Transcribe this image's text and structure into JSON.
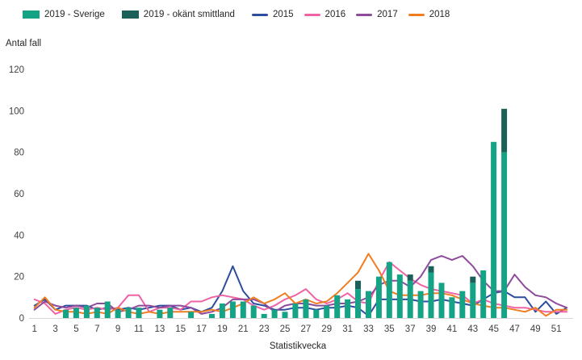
{
  "legend": {
    "items": [
      {
        "label": "2019 - Sverige",
        "color": "#14a384",
        "type": "bar"
      },
      {
        "label": "2019 - okänt smittland",
        "color": "#1a6059",
        "type": "bar"
      },
      {
        "label": "2015",
        "color": "#2d4d9e",
        "type": "line"
      },
      {
        "label": "2016",
        "color": "#ef63a5",
        "type": "line"
      },
      {
        "label": "2017",
        "color": "#8f4a9c",
        "type": "line"
      },
      {
        "label": "2018",
        "color": "#ef7d22",
        "type": "line"
      }
    ]
  },
  "chart_data": {
    "type": "bar",
    "title": "",
    "ylabel": "Antal fall",
    "xlabel": "Statistikvecka",
    "ylim": [
      0,
      120
    ],
    "grid": false,
    "legend_position": "top",
    "y_ticks": [
      0,
      20,
      40,
      60,
      80,
      100,
      120
    ],
    "x_tick_weeks": [
      1,
      3,
      5,
      7,
      9,
      11,
      13,
      15,
      17,
      19,
      21,
      23,
      25,
      27,
      29,
      31,
      33,
      35,
      37,
      39,
      41,
      43,
      45,
      47,
      49,
      51
    ],
    "weeks": [
      1,
      2,
      3,
      4,
      5,
      6,
      7,
      8,
      9,
      10,
      11,
      12,
      13,
      14,
      15,
      16,
      17,
      18,
      19,
      20,
      21,
      22,
      23,
      24,
      25,
      26,
      27,
      28,
      29,
      30,
      31,
      32,
      33,
      34,
      35,
      36,
      37,
      38,
      39,
      40,
      41,
      42,
      43,
      44,
      45,
      46,
      47,
      48,
      49,
      50,
      51,
      52
    ],
    "bar_series": [
      {
        "name": "2019 - Sverige",
        "color": "#14a384",
        "values": [
          0,
          0,
          0,
          4,
          5,
          6,
          5,
          8,
          4,
          5,
          5,
          0,
          4,
          5,
          0,
          3,
          0,
          2,
          7,
          8,
          8,
          6,
          2,
          4,
          3,
          7,
          9,
          4,
          6,
          11,
          9,
          14,
          13,
          20,
          27,
          21,
          18,
          13,
          22,
          17,
          10,
          13,
          17,
          23,
          85,
          80,
          0,
          0,
          0,
          0,
          0,
          0
        ]
      },
      {
        "name": "2019 - okänt smittland",
        "color": "#1a6059",
        "stacked_on": "2019 - Sverige",
        "values": [
          0,
          0,
          0,
          0,
          0,
          0,
          0,
          0,
          0,
          0,
          0,
          0,
          0,
          0,
          0,
          0,
          0,
          0,
          0,
          0,
          0,
          0,
          0,
          0,
          0,
          0,
          0,
          0,
          0,
          0,
          0,
          4,
          0,
          0,
          0,
          0,
          3,
          0,
          3,
          0,
          0,
          0,
          3,
          0,
          0,
          21,
          0,
          0,
          0,
          0,
          0,
          0
        ]
      }
    ],
    "line_series": [
      {
        "name": "2015",
        "color": "#2d4d9e",
        "values": [
          6,
          9,
          4,
          6,
          6,
          6,
          4,
          5,
          4,
          5,
          4,
          5,
          6,
          6,
          4,
          5,
          3,
          5,
          13,
          25,
          13,
          7,
          6,
          4,
          4,
          5,
          5,
          4,
          5,
          5,
          6,
          5,
          1,
          9,
          9,
          9,
          9,
          8,
          8,
          9,
          8,
          7,
          6,
          9,
          12,
          13,
          10,
          10,
          3,
          8,
          2,
          5
        ]
      },
      {
        "name": "2016",
        "color": "#ef63a5",
        "values": [
          9,
          7,
          2,
          4,
          5,
          4,
          5,
          4,
          5,
          11,
          11,
          3,
          5,
          5,
          4,
          8,
          8,
          10,
          11,
          10,
          9,
          6,
          4,
          6,
          9,
          11,
          14,
          9,
          7,
          9,
          12,
          8,
          7,
          18,
          27,
          23,
          19,
          16,
          14,
          13,
          12,
          11,
          7,
          9,
          7,
          6,
          5,
          5,
          4,
          3,
          3,
          3
        ]
      },
      {
        "name": "2017",
        "color": "#8f4a9c",
        "values": [
          4,
          8,
          6,
          5,
          6,
          5,
          7,
          7,
          3,
          4,
          6,
          6,
          5,
          6,
          6,
          5,
          2,
          3,
          5,
          9,
          9,
          9,
          7,
          3,
          6,
          7,
          7,
          6,
          6,
          7,
          7,
          8,
          10,
          16,
          18,
          18,
          15,
          20,
          28,
          30,
          28,
          30,
          25,
          18,
          13,
          13,
          21,
          15,
          11,
          10,
          7,
          5
        ]
      },
      {
        "name": "2018",
        "color": "#ef7d22",
        "values": [
          5,
          10,
          4,
          3,
          3,
          2,
          3,
          2,
          5,
          3,
          2,
          3,
          2,
          3,
          3,
          3,
          3,
          4,
          3,
          5,
          7,
          10,
          7,
          9,
          12,
          7,
          9,
          7,
          8,
          12,
          17,
          22,
          31,
          23,
          13,
          11,
          11,
          11,
          12,
          12,
          11,
          9,
          7,
          6,
          5,
          5,
          4,
          3,
          5,
          1,
          4,
          4
        ]
      }
    ]
  }
}
